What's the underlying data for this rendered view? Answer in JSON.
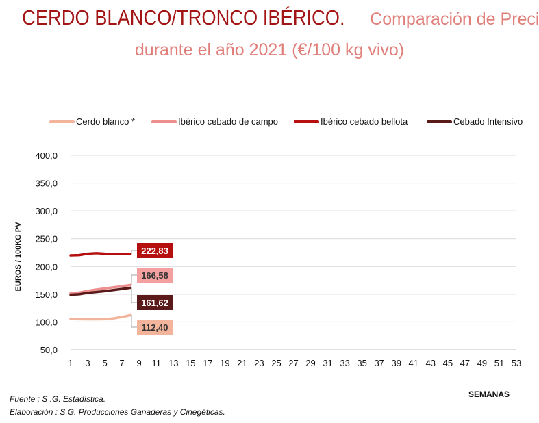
{
  "title": {
    "main": "CERDO BLANCO/TRONCO IBÉRICO.",
    "sub_line1": "Comparación de Precios",
    "sub_line2": "durante el año 2021 (€/100 kg vivo)"
  },
  "footer": {
    "source": "Fuente :  S .G. Estadística.",
    "elaboration": "Elaboración : S.G. Producciones Ganaderas y Cinegéticas."
  },
  "chart_data": {
    "type": "line",
    "ylabel": "EUROS / 100KG PV",
    "xlabel": "SEMANAS",
    "ylim": [
      50,
      400
    ],
    "xlim": [
      1,
      53
    ],
    "x_ticks": [
      1,
      3,
      5,
      7,
      9,
      11,
      13,
      15,
      17,
      19,
      21,
      23,
      25,
      27,
      29,
      31,
      33,
      35,
      37,
      39,
      41,
      43,
      45,
      47,
      49,
      51,
      53
    ],
    "y_ticks": [
      "50,0",
      "100,0",
      "150,0",
      "200,0",
      "250,0",
      "300,0",
      "350,0",
      "400,0"
    ],
    "grid": "horizontal",
    "legend_position": "top",
    "series": [
      {
        "name": "Cerdo blanco *",
        "color": "#f2b49a",
        "x": [
          1,
          2,
          3,
          4,
          5,
          6,
          7,
          8
        ],
        "values": [
          105.5,
          105.0,
          104.8,
          104.8,
          105.0,
          106.5,
          109.0,
          112.4
        ],
        "end_label": "112,40",
        "label_color": "#f2b49a",
        "label_text_color": "#333333"
      },
      {
        "name": "Ibérico cebado de campo",
        "color": "#ee8f8f",
        "x": [
          1,
          2,
          3,
          4,
          5,
          6,
          7,
          8
        ],
        "values": [
          152.0,
          153.0,
          156.0,
          158.5,
          160.5,
          162.5,
          164.5,
          166.58
        ],
        "end_label": "166,58",
        "label_color": "#f4a0a0",
        "label_text_color": "#333333"
      },
      {
        "name": "Ibérico cebado bellota",
        "color": "#b50f0f",
        "x": [
          1,
          2,
          3,
          4,
          5,
          6,
          7,
          8
        ],
        "values": [
          220.0,
          220.5,
          223.0,
          224.0,
          223.0,
          222.8,
          222.8,
          222.83
        ],
        "end_label": "222,83",
        "label_color": "#b50f0f",
        "label_text_color": "#ffffff"
      },
      {
        "name": "Cebado Intensivo",
        "color": "#5a1a1a",
        "x": [
          1,
          2,
          3,
          4,
          5,
          6,
          7,
          8
        ],
        "values": [
          149.0,
          150.0,
          152.5,
          154.0,
          155.5,
          157.5,
          159.5,
          161.62
        ],
        "end_label": "161,62",
        "label_color": "#5a1a1a",
        "label_text_color": "#ffffff"
      }
    ]
  }
}
